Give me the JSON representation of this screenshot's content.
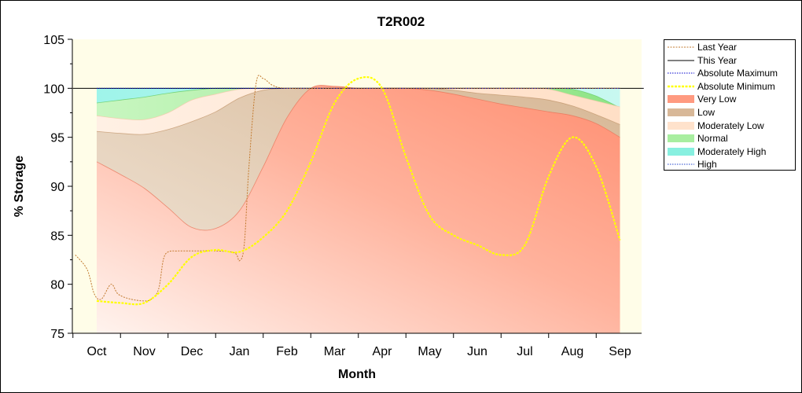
{
  "chart_data": {
    "type": "area",
    "title": "T2R002",
    "xlabel": "Month",
    "ylabel": "% Storage",
    "ylim": [
      75,
      105
    ],
    "yticks": [
      75,
      80,
      85,
      90,
      95,
      100,
      105
    ],
    "categories": [
      "Oct",
      "Nov",
      "Dec",
      "Jan",
      "Feb",
      "Mar",
      "Apr",
      "May",
      "Jun",
      "Jul",
      "Aug",
      "Sep"
    ],
    "grid": false,
    "legend_position": "right",
    "bands": {
      "x": [
        0,
        0.5,
        1,
        1.5,
        2,
        2.5,
        3,
        3.5,
        4,
        4.5,
        5,
        5.5,
        6,
        6.5,
        7,
        7.5,
        8,
        8.5,
        9,
        9.5,
        10,
        10.5,
        11
      ],
      "very_low": [
        92.5,
        91.2,
        89.8,
        87.8,
        85.8,
        85.7,
        87.5,
        92.0,
        97.0,
        100.0,
        100.2,
        100.0,
        100.0,
        100.0,
        99.8,
        99.4,
        98.9,
        98.4,
        98.0,
        97.6,
        97.2,
        96.4,
        95.0
      ],
      "low": [
        95.6,
        95.4,
        95.3,
        95.8,
        96.6,
        97.6,
        99.0,
        99.8,
        100.0,
        100.0,
        100.0,
        100.0,
        100.0,
        100.0,
        100.0,
        99.8,
        99.5,
        99.3,
        99.1,
        98.8,
        98.2,
        97.3,
        96.3
      ],
      "moderately_low": [
        97.2,
        96.9,
        96.8,
        97.5,
        98.8,
        99.4,
        99.9,
        100.0,
        100.0,
        100.0,
        100.0,
        100.0,
        100.0,
        100.0,
        100.0,
        100.0,
        100.0,
        100.0,
        100.0,
        99.9,
        99.3,
        98.7,
        98.1
      ],
      "normal": [
        98.5,
        98.8,
        99.1,
        99.5,
        99.8,
        100.0,
        100.0,
        100.0,
        100.0,
        100.0,
        100.0,
        100.0,
        100.0,
        100.0,
        100.0,
        100.0,
        100.0,
        100.0,
        100.0,
        100.0,
        99.9,
        99.2,
        98.0
      ],
      "moderately_high": [
        100,
        100,
        100,
        100,
        100,
        100,
        100,
        100,
        100,
        100,
        100,
        100,
        100,
        100,
        100,
        100,
        100,
        100,
        100,
        100,
        100,
        100,
        100
      ]
    },
    "series": [
      {
        "name": "Last Year",
        "color": "#c27a2f",
        "x": [
          -0.45,
          -0.2,
          -0.05,
          0.1,
          0.3,
          0.45,
          0.7,
          1.0,
          1.15,
          1.3,
          1.4,
          1.5,
          1.7,
          2.0,
          2.5,
          2.9,
          3.0,
          3.1,
          3.2,
          3.35,
          3.5,
          3.7,
          4.0,
          5.0,
          6.0,
          7.0,
          8.0,
          9.0,
          10.0,
          11.0
        ],
        "y": [
          83.0,
          81.5,
          79.0,
          78.5,
          80.0,
          79.0,
          78.5,
          78.3,
          78.5,
          79.5,
          82.5,
          83.3,
          83.4,
          83.4,
          83.4,
          83.2,
          82.4,
          84.0,
          92.0,
          100.5,
          101.0,
          100.3,
          100.0,
          100.0,
          100.0,
          100.0,
          100.0,
          100.0,
          100.0,
          100.0
        ]
      },
      {
        "name": "This Year",
        "color": "#000000",
        "x": [
          -0.5,
          11.5
        ],
        "y": [
          100.0,
          100.0
        ]
      },
      {
        "name": "Absolute Maximum",
        "color": "#0000cc",
        "x": [
          0,
          11
        ],
        "y": [
          100.0,
          100.0
        ]
      },
      {
        "name": "Absolute Minimum",
        "color": "#ffff00",
        "x": [
          0.0,
          0.5,
          1.0,
          1.5,
          2.0,
          2.5,
          3.0,
          3.5,
          4.0,
          4.5,
          5.0,
          5.5,
          6.0,
          6.5,
          7.0,
          7.5,
          8.0,
          8.5,
          9.0,
          9.5,
          10.0,
          10.5,
          11.0
        ],
        "y": [
          78.3,
          78.1,
          78.1,
          80.0,
          82.8,
          83.5,
          83.3,
          84.8,
          87.5,
          92.5,
          98.5,
          101.0,
          100.0,
          93.0,
          87.0,
          85.0,
          84.0,
          83.0,
          84.0,
          91.0,
          95.0,
          92.0,
          84.5
        ]
      }
    ],
    "legend": [
      {
        "label": "Last Year",
        "swatch": "dashed-line",
        "color": "#c27a2f"
      },
      {
        "label": "This Year",
        "swatch": "line",
        "color": "#000000"
      },
      {
        "label": "Absolute Maximum",
        "swatch": "dotted-line",
        "color": "#0000cc"
      },
      {
        "label": "Absolute Minimum",
        "swatch": "thick-dotted-line",
        "color": "#ffff00"
      },
      {
        "label": "Very Low",
        "swatch": "fill",
        "color": "#ff9a80"
      },
      {
        "label": "Low",
        "swatch": "fill",
        "color": "#d8b898"
      },
      {
        "label": "Moderately Low",
        "swatch": "fill",
        "color": "#ffe2cc"
      },
      {
        "label": "Normal",
        "swatch": "fill",
        "color": "#a8eea0"
      },
      {
        "label": "Moderately High",
        "swatch": "fill",
        "color": "#88f0e0"
      },
      {
        "label": "High",
        "swatch": "dotted-line",
        "color": "#2244cc"
      }
    ]
  }
}
